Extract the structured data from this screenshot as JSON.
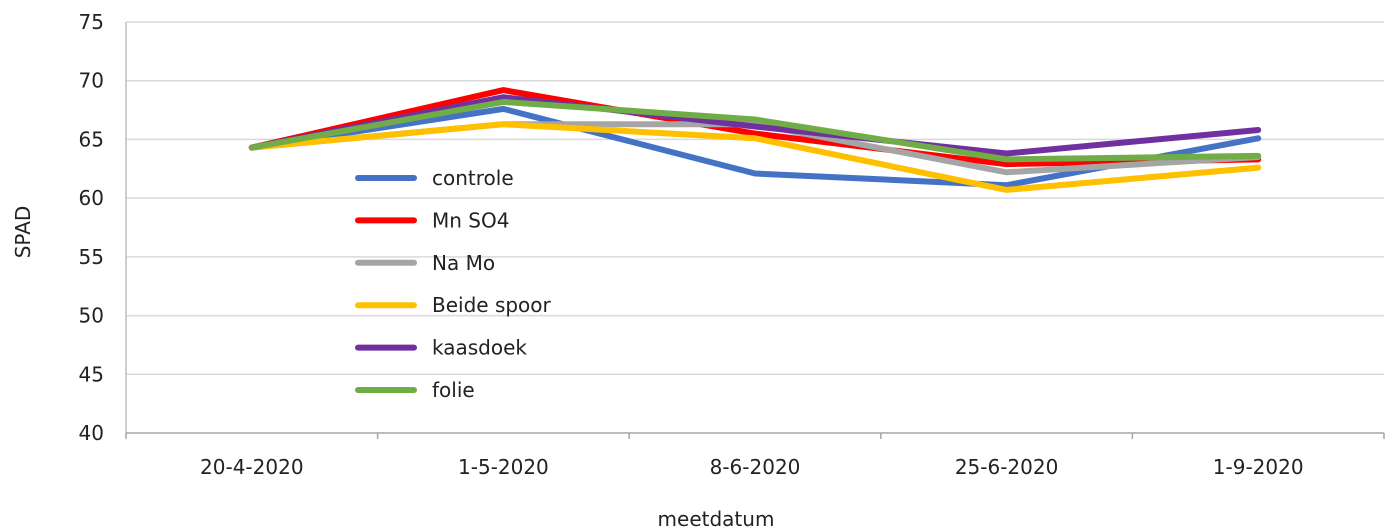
{
  "chart_data": {
    "type": "line",
    "categories": [
      "20-4-2020",
      "1-5-2020",
      "8-6-2020",
      "25-6-2020",
      "1-9-2020"
    ],
    "xlabel": "meetdatum",
    "ylabel": "SPAD",
    "ylim": [
      40,
      75
    ],
    "yticks": [
      40,
      45,
      50,
      55,
      60,
      65,
      70,
      75
    ],
    "grid": "horizontal",
    "legend_position": "inside-left",
    "series": [
      {
        "name": "controle",
        "color": "#4472C4",
        "values": [
          64.3,
          67.6,
          62.1,
          61.1,
          65.1
        ]
      },
      {
        "name": "Mn SO4",
        "color": "#FF0000",
        "values": [
          64.3,
          69.2,
          65.5,
          62.9,
          63.3
        ]
      },
      {
        "name": "Na Mo",
        "color": "#A5A5A5",
        "values": [
          64.3,
          66.3,
          66.3,
          62.2,
          63.5
        ]
      },
      {
        "name": "Beide spoor",
        "color": "#FFC000",
        "values": [
          64.3,
          66.3,
          65.1,
          60.7,
          62.6
        ]
      },
      {
        "name": "kaasdoek",
        "color": "#7030A0",
        "values": [
          64.3,
          68.6,
          66.1,
          63.8,
          65.8
        ]
      },
      {
        "name": "folie",
        "color": "#70AD47",
        "values": [
          64.3,
          68.2,
          66.7,
          63.3,
          63.6
        ]
      }
    ]
  }
}
